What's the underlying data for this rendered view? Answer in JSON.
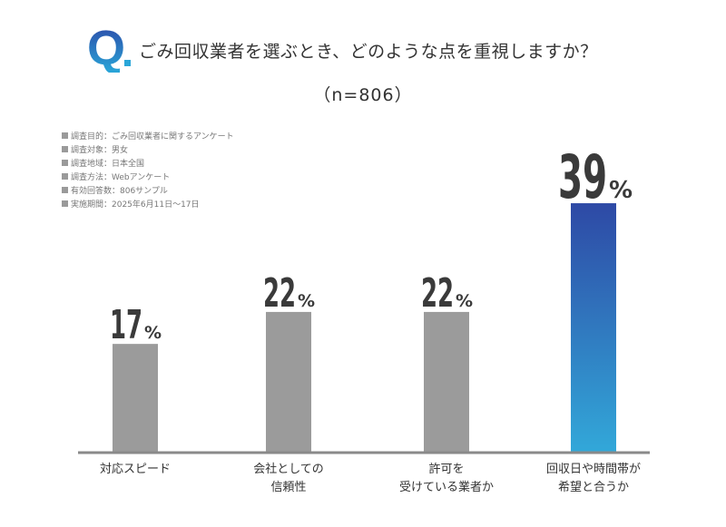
{
  "header": {
    "q_mark": "Q",
    "question": "ごみ回収業者を選ぶとき、どのような点を重視しますか？",
    "sample": "（n=806）"
  },
  "meta": [
    "調査目的：ごみ回収業者に関するアンケート",
    "調査対象：男女",
    "調査地域：日本全国",
    "調査方法：Webアンケート",
    "有効回答数：806サンプル",
    "実施期間：2025年6月11日〜17日"
  ],
  "colors": {
    "bar_default": "#9b9b9b",
    "bar_highlight_top": "#2e49a5",
    "bar_highlight_bottom": "#32a8d9",
    "axis": "#8a8a8a",
    "value_text": "#3a3a3a"
  },
  "chart_data": {
    "type": "bar",
    "categories": [
      [
        "対応スピード"
      ],
      [
        "会社としての",
        "信頼性"
      ],
      [
        "許可を",
        "受けている業者か"
      ],
      [
        "回収日や時間帯が",
        "希望と合うか"
      ]
    ],
    "values": [
      17,
      22,
      22,
      39
    ],
    "value_labels": [
      "17",
      "22",
      "22",
      "39"
    ],
    "unit": "%",
    "highlight_index": 3,
    "ylim": [
      0,
      45
    ]
  }
}
